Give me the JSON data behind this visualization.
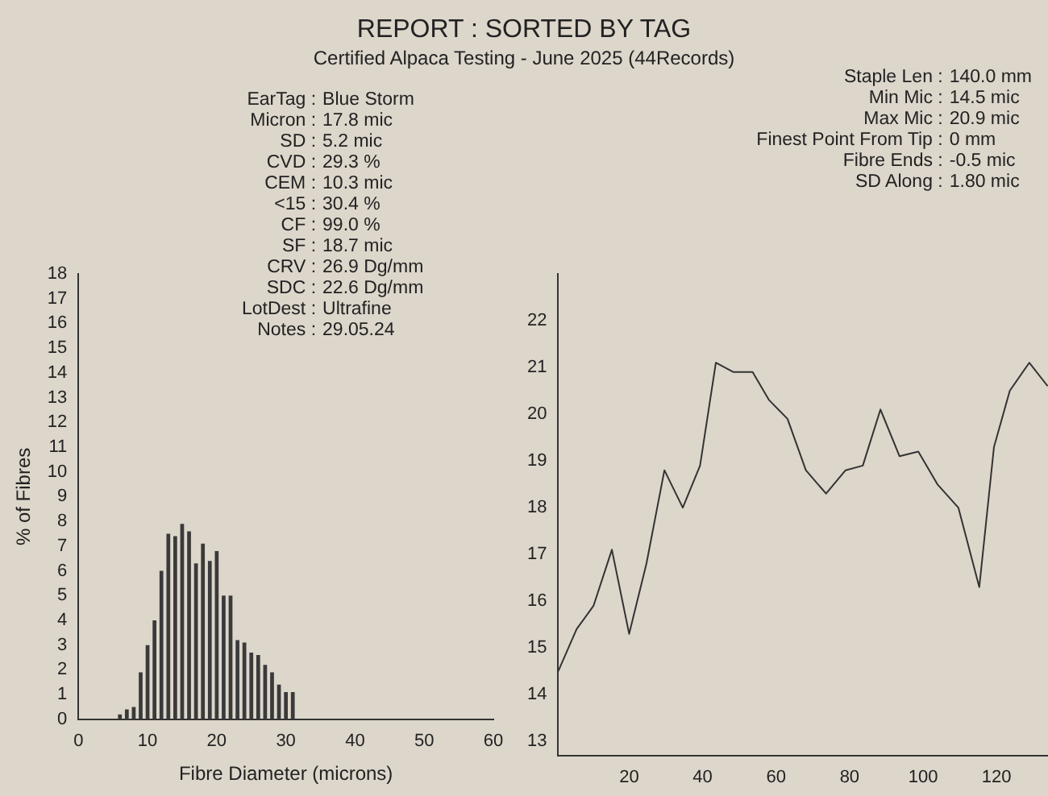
{
  "chart_data": [
    {
      "type": "histogram",
      "title": "REPORT : SORTED BY TAG",
      "subtitle": "Certified Alpaca Testing - June 2025 (44Records)",
      "xlabel": "Fibre Diameter (microns)",
      "ylabel": "% of Fibres",
      "color": "#3a3a3a",
      "bins": [
        5.5,
        6.5,
        7.5,
        8.5,
        9.5,
        10.5,
        11.5,
        12.5,
        13.5,
        14.5,
        15.5,
        16.5,
        17.5,
        18.5,
        19.5,
        20.5,
        21.5,
        22.5,
        23.5,
        24.5,
        25.5,
        26.5,
        27.5,
        28.5,
        29.5,
        30.5,
        31.5
      ],
      "values": [
        0.2,
        0.4,
        0.5,
        1.9,
        3.0,
        4.0,
        6.0,
        7.5,
        7.4,
        7.9,
        7.6,
        6.3,
        7.1,
        6.4,
        6.8,
        5.0,
        5.0,
        3.2,
        3.1,
        2.7,
        2.6,
        2.2,
        1.9,
        1.4,
        1.1,
        1.1
      ],
      "xlim": [
        0,
        60
      ],
      "xticks": [
        0,
        10,
        20,
        30,
        40,
        50,
        60
      ],
      "ylim": [
        0,
        18
      ],
      "yticks": [
        0,
        1,
        2,
        3,
        4,
        5,
        6,
        7,
        8,
        9,
        10,
        11,
        12,
        13,
        14,
        15,
        16,
        17,
        18
      ],
      "annotations": [
        "EarTag : Blue Storm",
        "Micron : 17.8 mic",
        "SD : 5.2 mic",
        "CVD : 29.3 %",
        "CEM : 10.3 mic",
        "<15 : 30.4 %",
        "CF : 99.0 %",
        "SF : 18.7 mic",
        "CRV : 26.9 Dg/mm",
        "SDC : 22.6 Dg/mm",
        "LotDest : Ultrafine",
        "Notes : 29.05.24"
      ]
    },
    {
      "type": "line",
      "color": "#333333",
      "marker": "none",
      "x": [
        0.7,
        5.7,
        10.3,
        15.3,
        20,
        24.7,
        29.6,
        34.6,
        39.3,
        43.6,
        48.4,
        53.6,
        58.1,
        63.1,
        68.1,
        73.6,
        78.9,
        83.6,
        88.4,
        93.6,
        98.7,
        103.9,
        109.6,
        115.3,
        119.3,
        123.6,
        128.9,
        133.9
      ],
      "values": [
        14.5,
        15.4,
        15.9,
        17.1,
        15.3,
        16.8,
        18.8,
        18.0,
        18.9,
        21.1,
        20.9,
        20.9,
        20.3,
        19.9,
        18.8,
        18.3,
        18.8,
        18.9,
        20.1,
        19.1,
        19.2,
        18.5,
        18.0,
        16.3,
        19.3,
        20.5,
        21.1,
        20.6
      ],
      "xlim": [
        0.7,
        134
      ],
      "xticks": [
        20,
        40,
        60,
        80,
        100,
        120
      ],
      "ylim": [
        12.7,
        23
      ],
      "yticks": [
        13,
        14,
        15,
        16,
        17,
        18,
        19,
        20,
        21,
        22
      ],
      "annotations": [
        "Staple Len : 140.0 mm",
        "Min Mic : 14.5 mic",
        "Max Mic : 20.9 mic",
        "Finest Point From Tip : 0 mm",
        "Fibre Ends : -0.5 mic",
        "SD Along : 1.80 mic"
      ]
    }
  ]
}
